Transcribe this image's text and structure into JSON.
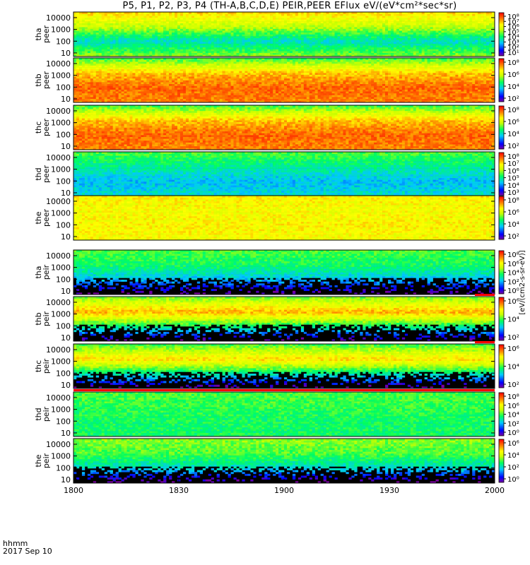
{
  "title": "P5, P1, P2, P3, P4 (TH-A,B,C,D,E) PEIR,PEER EFlux eV/(eV*cm²*sec*sr)",
  "footer": {
    "time_label": "hhmm",
    "date_label": "2017 Sep 10"
  },
  "colorbar_label": "[eV/(cm2-s-sr-eV)]",
  "colors": {
    "background": "#ffffff",
    "fill_gap": "#000000",
    "gap_bar": "#ff0000"
  },
  "chart_data": {
    "type": "heatmap",
    "x_ticks": [
      "1800",
      "1830",
      "1900",
      "1930",
      "2000"
    ],
    "y_ticks": [
      "10",
      "100",
      "1000",
      "10000"
    ],
    "ylim": [
      5,
      30000
    ],
    "y_scale": "log",
    "panels": [
      {
        "name": "tha\npeer",
        "levels": [
          0.55,
          0.35,
          0.6,
          0.75
        ],
        "cbar": [
          "10⁸",
          "10⁷",
          "10⁶",
          "10⁵",
          "10⁴",
          "10³",
          "10²",
          "10¹"
        ],
        "sparse": false,
        "band_core": 0.75
      },
      {
        "name": "thb\npeer",
        "levels": [
          0.85,
          0.88,
          0.78,
          0.5
        ],
        "cbar": [
          "10⁸",
          "10⁶",
          "10⁴",
          "10²"
        ],
        "sparse": false,
        "band_core": 0.9
      },
      {
        "name": "thc\npeer",
        "levels": [
          0.85,
          0.88,
          0.78,
          0.5
        ],
        "cbar": [
          "10⁸",
          "10⁶",
          "10⁴",
          "10²"
        ],
        "sparse": false,
        "band_core": 0.9
      },
      {
        "name": "thd\npeer",
        "levels": [
          0.35,
          0.3,
          0.4,
          0.5
        ],
        "cbar": [
          "10⁸",
          "10⁷",
          "10⁶",
          "10⁵",
          "10⁴",
          "10³"
        ],
        "sparse": false,
        "band_core": 0.4
      },
      {
        "name": "the\npeer",
        "levels": [
          0.7,
          0.72,
          0.7,
          0.72
        ],
        "cbar": [
          "10⁸",
          "10⁶",
          "10⁴",
          "10²"
        ],
        "sparse": false,
        "band_core": 0.75
      },
      {
        "name": "tha\npeir",
        "levels": [
          0.0,
          0.3,
          0.45,
          0.5
        ],
        "cbar": [
          "10⁸",
          "10⁶",
          "10⁴",
          "10²",
          "10⁰"
        ],
        "sparse": true,
        "band_core": 0.5
      },
      {
        "name": "thb\npeir",
        "levels": [
          0.0,
          0.45,
          0.8,
          0.55
        ],
        "cbar": [
          "10⁶",
          "10⁴",
          "10²"
        ],
        "sparse": true,
        "band_core": 0.85
      },
      {
        "name": "thc\npeir",
        "levels": [
          0.0,
          0.4,
          0.75,
          0.5
        ],
        "cbar": [
          "10⁶",
          "10⁴",
          "10²"
        ],
        "sparse": true,
        "band_core": 0.8
      },
      {
        "name": "thd\npeir",
        "levels": [
          0.45,
          0.45,
          0.48,
          0.5
        ],
        "cbar": [
          "10⁸",
          "10⁶",
          "10⁴",
          "10²",
          "10⁰"
        ],
        "sparse": false,
        "band_core": 0.5
      },
      {
        "name": "the\npeir",
        "levels": [
          0.0,
          0.35,
          0.5,
          0.55
        ],
        "cbar": [
          "10⁶",
          "10⁴",
          "10²",
          "10⁰"
        ],
        "sparse": true,
        "band_core": 0.5
      }
    ]
  }
}
